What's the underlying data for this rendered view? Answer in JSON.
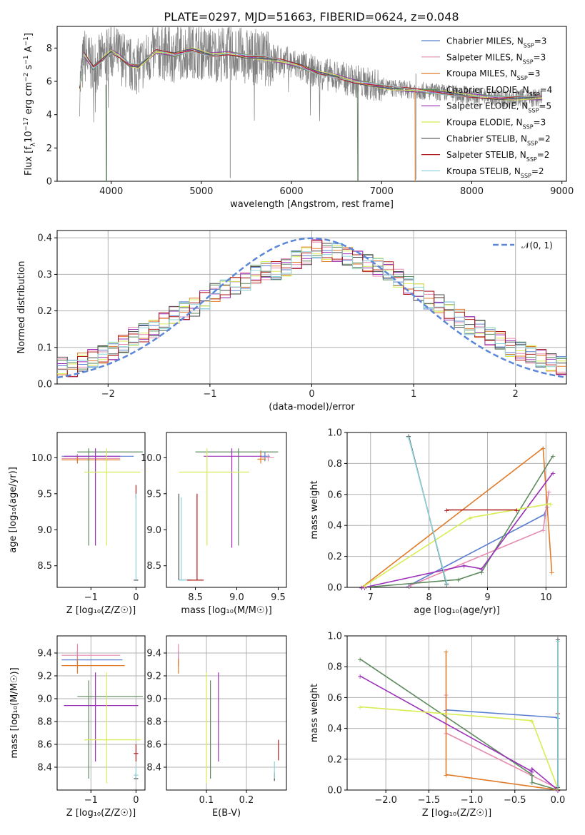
{
  "title": "PLATE=0297, MJD=51663, FIBERID=0624, z=0.048",
  "colors": {
    "Chabrier MILES": "#5b7fd0",
    "Salpeter MILES": "#e68ab0",
    "Kroupa MILES": "#e07b2a",
    "Chabrier ELODIE": "#5e8a5e",
    "Salpeter ELODIE": "#9a30b8",
    "Kroupa ELODIE": "#d8ec55",
    "Chabrier STELIB": "#4a4a4a",
    "Salpeter STELIB": "#b01a1a",
    "Kroupa STELIB": "#8fd3da",
    "data": "#808080",
    "gaussian": "#5b87d6"
  },
  "chart_data": [
    {
      "id": "spectrum",
      "type": "line",
      "xlabel": "wavelength [Angstrom, rest frame]",
      "ylabel": "Flux [f_λ 10^-17 erg cm^-2 s^-1 A^-1]",
      "xlim": [
        3400,
        9050
      ],
      "ylim": [
        0,
        9.3
      ],
      "xticks": [
        4000,
        5000,
        6000,
        7000,
        8000,
        9000
      ],
      "yticks": [
        0,
        2,
        4,
        6,
        8
      ],
      "data_series": {
        "name": "data",
        "x": [
          3650,
          3700,
          3800,
          3900,
          4000,
          4100,
          4200,
          4300,
          4500,
          4700,
          4900,
          5100,
          5300,
          5500,
          5700,
          5900,
          6100,
          6300,
          6500,
          6700,
          6900,
          7100,
          7300,
          7500,
          7700,
          7900,
          8100,
          8300,
          8500,
          8780
        ],
        "y": [
          5.6,
          7.6,
          6.8,
          7.3,
          7.8,
          7.5,
          7.0,
          6.9,
          7.8,
          7.6,
          7.9,
          7.6,
          7.7,
          7.5,
          7.4,
          7.2,
          6.9,
          6.5,
          6.3,
          6.0,
          5.8,
          5.6,
          5.5,
          5.4,
          5.3,
          5.2,
          5.1,
          5.0,
          5.0,
          5.0
        ]
      },
      "legend": [
        "Chabrier MILES, N_SSP=3",
        "Salpeter MILES, N_SSP=3",
        "Kroupa MILES, N_SSP=3",
        "Chabrier ELODIE, N_SSP=4",
        "Salpeter ELODIE, N_SSP=5",
        "Kroupa ELODIE, N_SSP=3",
        "Chabrier STELIB, N_SSP=2",
        "Salpeter STELIB, N_SSP=2",
        "Kroupa STELIB, N_SSP=2"
      ],
      "legend_position": "top-right"
    },
    {
      "id": "residuals",
      "type": "step",
      "xlabel": "(data-model)/error",
      "ylabel": "Normed distribution",
      "xlim": [
        -2.5,
        2.5
      ],
      "ylim": [
        0,
        0.42
      ],
      "xticks": [
        -2,
        -1,
        0,
        1,
        2
      ],
      "yticks": [
        0.0,
        0.1,
        0.2,
        0.3,
        0.4
      ],
      "grid": true,
      "legend": [
        "𝒩(0, 1)"
      ],
      "legend_position": "top-right",
      "bin_centers": [
        -2.45,
        -2.35,
        -2.25,
        -2.15,
        -2.05,
        -1.95,
        -1.85,
        -1.75,
        -1.65,
        -1.55,
        -1.45,
        -1.35,
        -1.25,
        -1.15,
        -1.05,
        -0.95,
        -0.85,
        -0.75,
        -0.65,
        -0.55,
        -0.45,
        -0.35,
        -0.25,
        -0.15,
        -0.05,
        0.05,
        0.15,
        0.25,
        0.35,
        0.45,
        0.55,
        0.65,
        0.75,
        0.85,
        0.95,
        1.05,
        1.15,
        1.25,
        1.35,
        1.45,
        1.55,
        1.65,
        1.75,
        1.85,
        1.95,
        2.05,
        2.15,
        2.25,
        2.35,
        2.45
      ],
      "series": [
        {
          "name": "Chabrier MILES",
          "offset": 0.0,
          "values": [
            0.05,
            0.04,
            0.06,
            0.07,
            0.08,
            0.09,
            0.11,
            0.13,
            0.14,
            0.15,
            0.17,
            0.19,
            0.2,
            0.21,
            0.23,
            0.25,
            0.26,
            0.27,
            0.28,
            0.3,
            0.31,
            0.31,
            0.32,
            0.34,
            0.35,
            0.37,
            0.36,
            0.36,
            0.35,
            0.34,
            0.33,
            0.32,
            0.31,
            0.29,
            0.27,
            0.25,
            0.23,
            0.22,
            0.2,
            0.18,
            0.16,
            0.15,
            0.13,
            0.12,
            0.1,
            0.09,
            0.08,
            0.07,
            0.06,
            0.05
          ]
        }
      ]
    },
    {
      "id": "age-vs-Z",
      "type": "errorbar",
      "xlabel": "Z [log10(Z/Z☉)]",
      "ylabel": "age [log10(age/yr)]",
      "xlim": [
        -1.75,
        0.2
      ],
      "ylim": [
        8.2,
        10.35
      ],
      "xticks": [
        -1,
        0
      ],
      "yticks": [
        8.5,
        9.0,
        9.5,
        10.0
      ]
    },
    {
      "id": "age-vs-mass",
      "type": "errorbar",
      "xlabel": "mass [log10(M/M☉)]",
      "ylabel": "",
      "xlim": [
        8.15,
        9.6
      ],
      "ylim": [
        8.2,
        10.35
      ],
      "xticks": [
        8.5,
        9.0,
        9.5
      ],
      "yticks": [
        8.5,
        9.0,
        9.5,
        10.0
      ]
    },
    {
      "id": "weight-vs-age",
      "type": "line",
      "xlabel": "age [log10(age/yr)]",
      "ylabel": "mass weight",
      "xlim": [
        6.6,
        10.35
      ],
      "ylim": [
        0,
        1
      ],
      "xticks": [
        7,
        8,
        9,
        10
      ],
      "yticks": [
        0.0,
        0.2,
        0.4,
        0.6,
        0.8,
        1.0
      ],
      "grid": true
    },
    {
      "id": "mass-vs-Z",
      "type": "errorbar",
      "xlabel": "Z [log10(Z/Z☉)]",
      "ylabel": "mass [log10(M/M☉)]",
      "xlim": [
        -1.75,
        0.2
      ],
      "ylim": [
        8.2,
        9.55
      ],
      "xticks": [
        -1,
        0
      ],
      "yticks": [
        8.4,
        8.6,
        8.8,
        9.0,
        9.2,
        9.4
      ],
      "grid": true
    },
    {
      "id": "mass-vs-ebv",
      "type": "errorbar",
      "xlabel": "E(B-V)",
      "ylabel": "",
      "xlim": [
        0.0,
        0.3
      ],
      "ylim": [
        8.2,
        9.55
      ],
      "xticks": [
        0.1,
        0.2
      ],
      "yticks": [
        8.4,
        8.6,
        8.8,
        9.0,
        9.2,
        9.4
      ],
      "grid": true
    },
    {
      "id": "weight-vs-Z",
      "type": "line",
      "xlabel": "Z [log10(Z/Z☉)]",
      "ylabel": "mass weight",
      "xlim": [
        -2.45,
        0.1
      ],
      "ylim": [
        0,
        1
      ],
      "xticks": [
        -2.0,
        -1.5,
        -1.0,
        -0.5,
        0.0
      ],
      "yticks": [
        0.0,
        0.2,
        0.4,
        0.6,
        0.8,
        1.0
      ],
      "grid": true
    }
  ],
  "models": [
    {
      "name": "Chabrier MILES",
      "age": [
        10.02,
        9.97,
        7.65
      ],
      "Z": [
        -1.3,
        0,
        0
      ],
      "w": [
        0.52,
        0.47,
        0.01
      ],
      "mass": 9.34,
      "ebv": 0.03,
      "age_err": [
        [
          10.02,
          -1.65,
          0.05
        ],
        [
          9.97,
          -1.3,
          -0.4
        ]
      ],
      "mass_err": [
        9.34,
        -1.65,
        -0.4
      ]
    },
    {
      "name": "Salpeter MILES",
      "age": [
        10.05,
        9.95,
        7.67
      ],
      "Z": [
        -1.3,
        -1.3,
        0
      ],
      "w": [
        0.62,
        0.37,
        0.01
      ],
      "mass": 9.38,
      "ebv": 0.03
    },
    {
      "name": "Kroupa MILES",
      "age": [
        9.95,
        10.1,
        6.85
      ],
      "Z": [
        -1.3,
        -1.3,
        0
      ],
      "w": [
        0.9,
        0.1,
        0.0
      ],
      "mass": 9.29,
      "ebv": 0.03
    },
    {
      "name": "Chabrier ELODIE",
      "age": [
        10.12,
        8.9,
        8.5,
        6.9
      ],
      "Z": [
        -2.3,
        -0.3,
        -0.3,
        0
      ],
      "w": [
        0.85,
        0.1,
        0.05,
        0.0
      ],
      "mass": 9.02,
      "ebv": 0.11
    },
    {
      "name": "Salpeter ELODIE",
      "age": [
        10.12,
        8.9,
        8.6,
        6.9,
        6.85
      ],
      "Z": [
        -2.3,
        -0.3,
        -0.3,
        0,
        0
      ],
      "w": [
        0.74,
        0.12,
        0.14,
        0.0,
        0.0
      ],
      "mass": 8.94,
      "ebv": 0.13
    },
    {
      "name": "Kroupa ELODIE",
      "age": [
        10.08,
        8.7,
        6.9
      ],
      "Z": [
        -2.3,
        -0.3,
        0
      ],
      "w": [
        0.54,
        0.45,
        0.01
      ],
      "mass": 8.64,
      "ebv": 0.1
    },
    {
      "name": "Chabrier STELIB",
      "age": [
        8.3,
        7.65
      ],
      "Z": [
        0,
        0
      ],
      "w": [
        0.02,
        0.98
      ],
      "mass": 8.3,
      "ebv": 0.27
    },
    {
      "name": "Salpeter STELIB",
      "age": [
        9.5,
        8.3
      ],
      "Z": [
        0,
        0
      ],
      "w": [
        0.5,
        0.5
      ],
      "mass": 8.52,
      "ebv": 0.28
    },
    {
      "name": "Kroupa STELIB",
      "age": [
        8.3,
        7.65
      ],
      "Z": [
        0,
        0
      ],
      "w": [
        0.03,
        0.97
      ],
      "mass": 8.33,
      "ebv": 0.27
    }
  ]
}
